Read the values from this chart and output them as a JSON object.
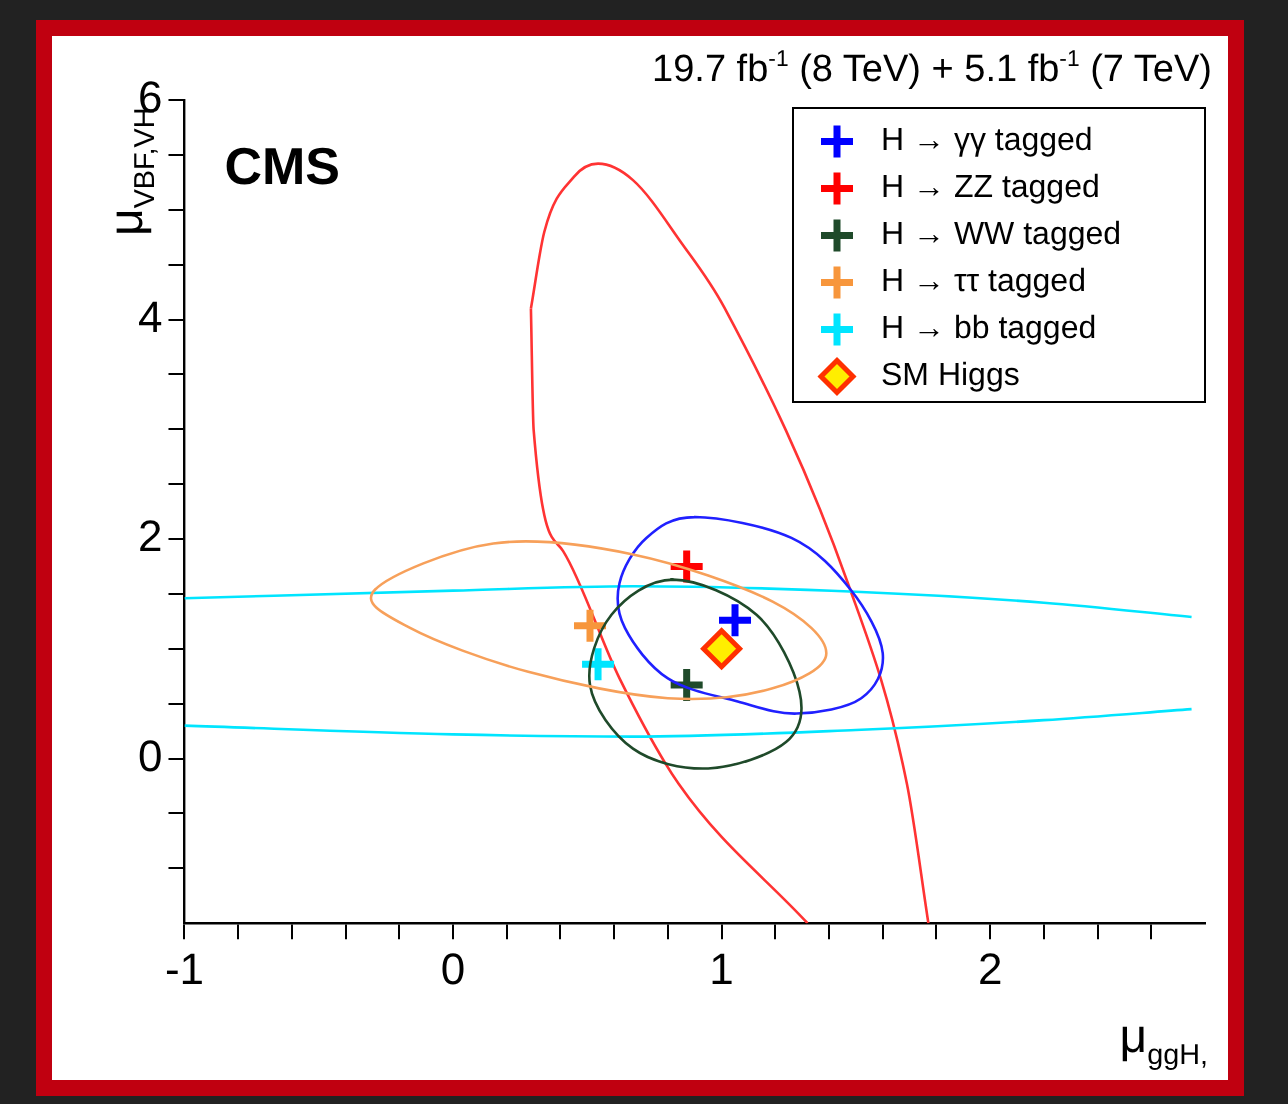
{
  "chart_data": {
    "type": "scatter",
    "title": "19.7 fb$^{-1}$ (8 TeV) +  5.1 fb$^{-1}$ (7 TeV)",
    "xlabel": "μ$_{ggH,}$",
    "ylabel": "μ$_{VBF,VH}$",
    "annotations": [
      "CMS"
    ],
    "xlim": [
      -1,
      2.8
    ],
    "ylim": [
      -1.5,
      6
    ],
    "xticks": [
      -1,
      {
        "value": -0.8,
        "label": null
      },
      {
        "value": -0.6,
        "label": null
      },
      {
        "value": -0.4,
        "label": null
      },
      {
        "value": -0.2,
        "label": null
      },
      0,
      {
        "value": 0.2,
        "label": null
      },
      {
        "value": 0.4,
        "label": null
      },
      {
        "value": 0.6,
        "label": null
      },
      {
        "value": 0.8,
        "label": null
      },
      1,
      {
        "value": 1.2,
        "label": null
      },
      {
        "value": 1.4,
        "label": null
      },
      {
        "value": 1.6,
        "label": null
      },
      {
        "value": 1.8,
        "label": null
      },
      2,
      {
        "value": 2.2,
        "label": null
      },
      {
        "value": 2.4,
        "label": null
      },
      {
        "value": 2.6,
        "label": null
      }
    ],
    "yticks": [
      {
        "value": -1,
        "label": null
      },
      {
        "value": -0.5,
        "label": null
      },
      0,
      {
        "value": 0.5,
        "label": null
      },
      {
        "value": 1,
        "label": null
      },
      {
        "value": 1.5,
        "label": null
      },
      2,
      {
        "value": 2.5,
        "label": null
      },
      {
        "value": 3,
        "label": null
      },
      {
        "value": 3.5,
        "label": null
      },
      4,
      {
        "value": 4.5,
        "label": null
      },
      {
        "value": 5,
        "label": null
      },
      {
        "value": 5.5,
        "label": null
      },
      6
    ],
    "grid": false,
    "legend": "top right",
    "series": [
      {
        "type": "line",
        "color": "#00e5ff",
        "x": [
          -1,
          0,
          0.67,
          1.5,
          2.2,
          2.75
        ],
        "values": [
          1.46,
          1.53,
          1.57,
          1.52,
          1.42,
          1.29
        ]
      },
      {
        "type": "line",
        "color": "#00e5ff",
        "x": [
          -1,
          0,
          0.67,
          1.5,
          2.2,
          2.75
        ],
        "values": [
          0.3,
          0.22,
          0.2,
          0.26,
          0.35,
          0.45
        ]
      },
      {
        "type": "line",
        "color": "#ff3333",
        "x": [
          0.29,
          0.3,
          0.41,
          0.62,
          0.84,
          1.32
        ],
        "values": [
          4.1,
          3.0,
          1.89,
          0.73,
          -0.23,
          -1.5
        ]
      },
      {
        "type": "line",
        "color": "#ff3333",
        "x": [
          0.29,
          0.34,
          0.45,
          0.54,
          0.67,
          0.85,
          1.01,
          1.47,
          1.69,
          1.77
        ],
        "values": [
          4.1,
          4.8,
          5.3,
          5.42,
          5.27,
          4.7,
          4.11,
          1.6,
          -0.23,
          -1.5
        ]
      },
      {
        "type": "scatter",
        "name": "H → γγ tagged",
        "color": "#0000ff",
        "marker": "cross",
        "x": [
          1.05
        ],
        "values": [
          1.26
        ]
      },
      {
        "type": "scatter",
        "name": "H → ZZ tagged",
        "color": "#ff0000",
        "marker": "cross",
        "x": [
          0.87
        ],
        "values": [
          1.75
        ]
      },
      {
        "type": "scatter",
        "name": "H → WW tagged",
        "color": "#1f4a2a",
        "marker": "cross",
        "x": [
          0.87
        ],
        "values": [
          0.67
        ]
      },
      {
        "type": "scatter",
        "name": "H → ττ tagged",
        "color": "#f7963c",
        "marker": "cross",
        "x": [
          0.51
        ],
        "values": [
          1.21
        ]
      },
      {
        "type": "scatter",
        "name": "H → bb tagged",
        "color": "#00e5ff",
        "marker": "cross",
        "x": [
          0.54
        ],
        "values": [
          0.86
        ]
      },
      {
        "type": "scatter",
        "name": "SM Higgs",
        "color": "#ffee00",
        "marker": "diamond",
        "x": [
          1
        ],
        "values": [
          1
        ]
      }
    ]
  }
}
